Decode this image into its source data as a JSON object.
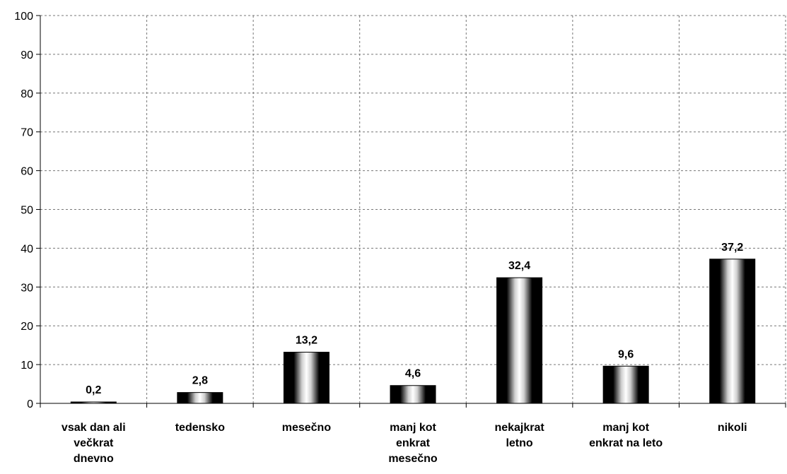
{
  "chart_data": {
    "type": "bar",
    "title": "",
    "xlabel": "",
    "ylabel": "",
    "ylim": [
      0,
      100
    ],
    "yticks": [
      0,
      10,
      20,
      30,
      40,
      50,
      60,
      70,
      80,
      90,
      100
    ],
    "grid": true,
    "legend": "none",
    "categories": [
      [
        "vsak dan ali",
        "večkrat",
        "dnevno"
      ],
      [
        "tedensko"
      ],
      [
        "mesečno"
      ],
      [
        "manj kot",
        "enkrat",
        "mesečno"
      ],
      [
        "nekajkrat",
        "letno"
      ],
      [
        "manj kot",
        "enkrat na leto"
      ],
      [
        "nikoli"
      ]
    ],
    "values": [
      0.2,
      2.8,
      13.2,
      4.6,
      32.4,
      9.6,
      37.2
    ],
    "data_labels": [
      "0,2",
      "2,8",
      "13,2",
      "4,6",
      "32,4",
      "9,6",
      "37,2"
    ],
    "colors": {
      "bar_edge": "#000000",
      "bar_center": "#ffffff",
      "grid": "#777777",
      "axis": "#000000"
    }
  }
}
